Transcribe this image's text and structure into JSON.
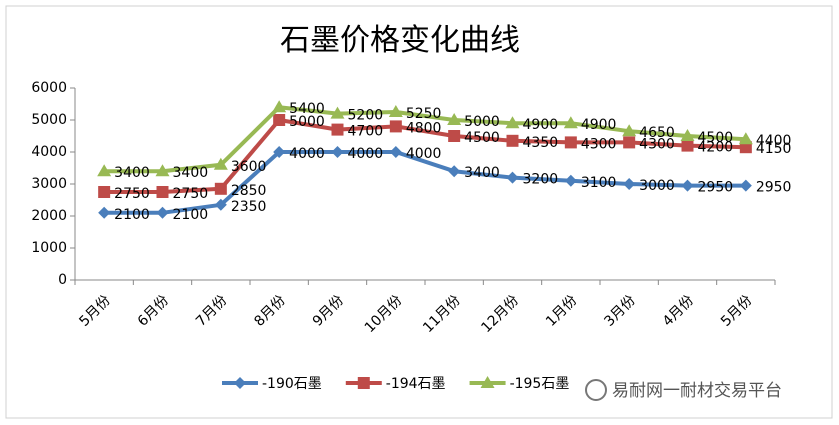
{
  "chart_data": {
    "type": "line",
    "title": "石墨价格变化曲线",
    "categories": [
      "5月份",
      "6月份",
      "7月份",
      "8月份",
      "9月份",
      "10月份",
      "11月份",
      "12月份",
      "1月份",
      "3月份",
      "4月份",
      "5月份"
    ],
    "series": [
      {
        "name": "-190石墨",
        "color": "#4a7ebb",
        "marker": "diamond",
        "values": [
          2100,
          2100,
          2350,
          4000,
          4000,
          4000,
          3400,
          3200,
          3100,
          3000,
          2950,
          2950
        ]
      },
      {
        "name": "-194石墨",
        "color": "#be4b48",
        "marker": "square",
        "values": [
          2750,
          2750,
          2850,
          5000,
          4700,
          4800,
          4500,
          4350,
          4300,
          4300,
          4200,
          4150
        ]
      },
      {
        "name": "-195石墨",
        "color": "#98b954",
        "marker": "triangle",
        "values": [
          3400,
          3400,
          3600,
          5400,
          5200,
          5250,
          5000,
          4900,
          4900,
          4650,
          4500,
          4400
        ]
      }
    ],
    "ylim": [
      0,
      6000
    ],
    "yticks": [
      0,
      1000,
      2000,
      3000,
      4000,
      5000,
      6000
    ],
    "grid": false,
    "legend": "bottom"
  },
  "watermark": "易耐网一耐材交易平台"
}
